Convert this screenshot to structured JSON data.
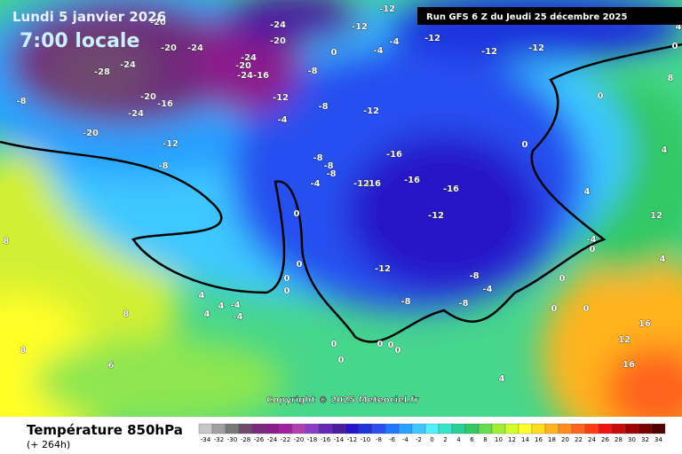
{
  "header": {
    "date": "Lundi 5 janvier 2026",
    "time": "7:00 locale"
  },
  "run": "Run GFS 6 Z du Jeudi 25 décembre 2025",
  "copyright": "Copyright © 2025 Meteociel.fr",
  "footer": {
    "title": "Température 850hPa",
    "lead": "(+ 264h)"
  },
  "map": {
    "contour_labels": [
      -20,
      -20,
      -24,
      -28,
      -24,
      -20,
      -16,
      -24,
      -20,
      -8,
      -12,
      -8,
      -24,
      -20,
      -24,
      -20,
      -24,
      -16,
      -12,
      -4,
      -8,
      -12,
      -12,
      -12,
      -4,
      -4,
      -12,
      -12,
      -12,
      0,
      -8,
      0,
      0,
      -16,
      -16,
      -16,
      -12,
      -16,
      -8,
      -8,
      -8,
      -4,
      -12,
      -12,
      -8,
      -4,
      -8,
      -8,
      0,
      0,
      0,
      0,
      4,
      4,
      4,
      -4,
      -4,
      8,
      0,
      0,
      0,
      0,
      8,
      6,
      8,
      4,
      4,
      4,
      12,
      0,
      -4,
      0,
      0,
      16,
      12,
      16,
      0,
      4,
      0,
      8,
      0,
      4
    ]
  },
  "colorbar": {
    "ticks": [
      -34,
      -32,
      -30,
      -28,
      -26,
      -24,
      -22,
      -20,
      -18,
      -16,
      -14,
      -12,
      -10,
      -8,
      -6,
      -4,
      -2,
      0,
      2,
      4,
      6,
      8,
      10,
      12,
      14,
      16,
      18,
      20,
      22,
      24,
      26,
      28,
      30,
      32,
      34
    ],
    "colors": [
      "#c8c8c8",
      "#a0a0a0",
      "#787878",
      "#6e4a6e",
      "#7a2a7a",
      "#8c1c8c",
      "#a020a0",
      "#b040b0",
      "#8a3cc8",
      "#6428b4",
      "#4b1ea0",
      "#2814c8",
      "#1e32dc",
      "#2850f0",
      "#1e78ff",
      "#28a0ff",
      "#3cc8ff",
      "#50f0ff",
      "#32e6c8",
      "#28d296",
      "#32c864",
      "#64dc50",
      "#a0f032",
      "#d2ff28",
      "#ffff28",
      "#ffdc1e",
      "#ffb41e",
      "#ff8c1e",
      "#ff641e",
      "#ff3c14",
      "#f01414",
      "#c80a0a",
      "#a00000",
      "#780000",
      "#500000"
    ]
  }
}
